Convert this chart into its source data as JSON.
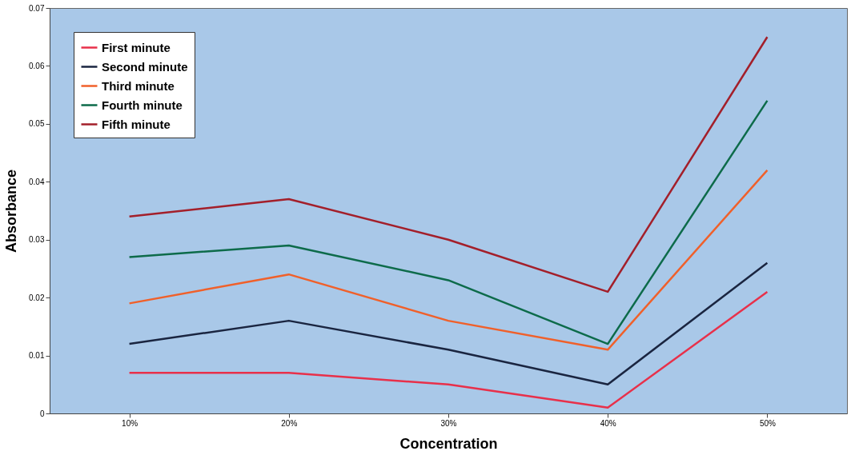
{
  "chart_data": {
    "type": "line",
    "xlabel": "Concentration",
    "ylabel": "Absorbance",
    "categories": [
      "10%",
      "20%",
      "30%",
      "40%",
      "50%"
    ],
    "series": [
      {
        "name": "First minute",
        "color": "#e8304a",
        "values": [
          0.007,
          0.007,
          0.005,
          0.001,
          0.021
        ]
      },
      {
        "name": "Second minute",
        "color": "#1a2540",
        "values": [
          0.012,
          0.016,
          0.011,
          0.005,
          0.026
        ]
      },
      {
        "name": "Third minute",
        "color": "#f0602a",
        "values": [
          0.019,
          0.024,
          0.016,
          0.011,
          0.042
        ]
      },
      {
        "name": "Fourth minute",
        "color": "#0d6b4a",
        "values": [
          0.027,
          0.029,
          0.023,
          0.012,
          0.054
        ]
      },
      {
        "name": "Fifth minute",
        "color": "#a31f2a",
        "values": [
          0.034,
          0.037,
          0.03,
          0.021,
          0.065
        ]
      }
    ],
    "ylim": [
      0,
      0.07
    ],
    "yticks": [
      {
        "value": 0,
        "label": "0"
      },
      0.01,
      0.02,
      0.03,
      0.04,
      0.05,
      0.06,
      0.07
    ],
    "grid": false,
    "legend": "top left",
    "marker": "none",
    "line_style": "solid"
  }
}
